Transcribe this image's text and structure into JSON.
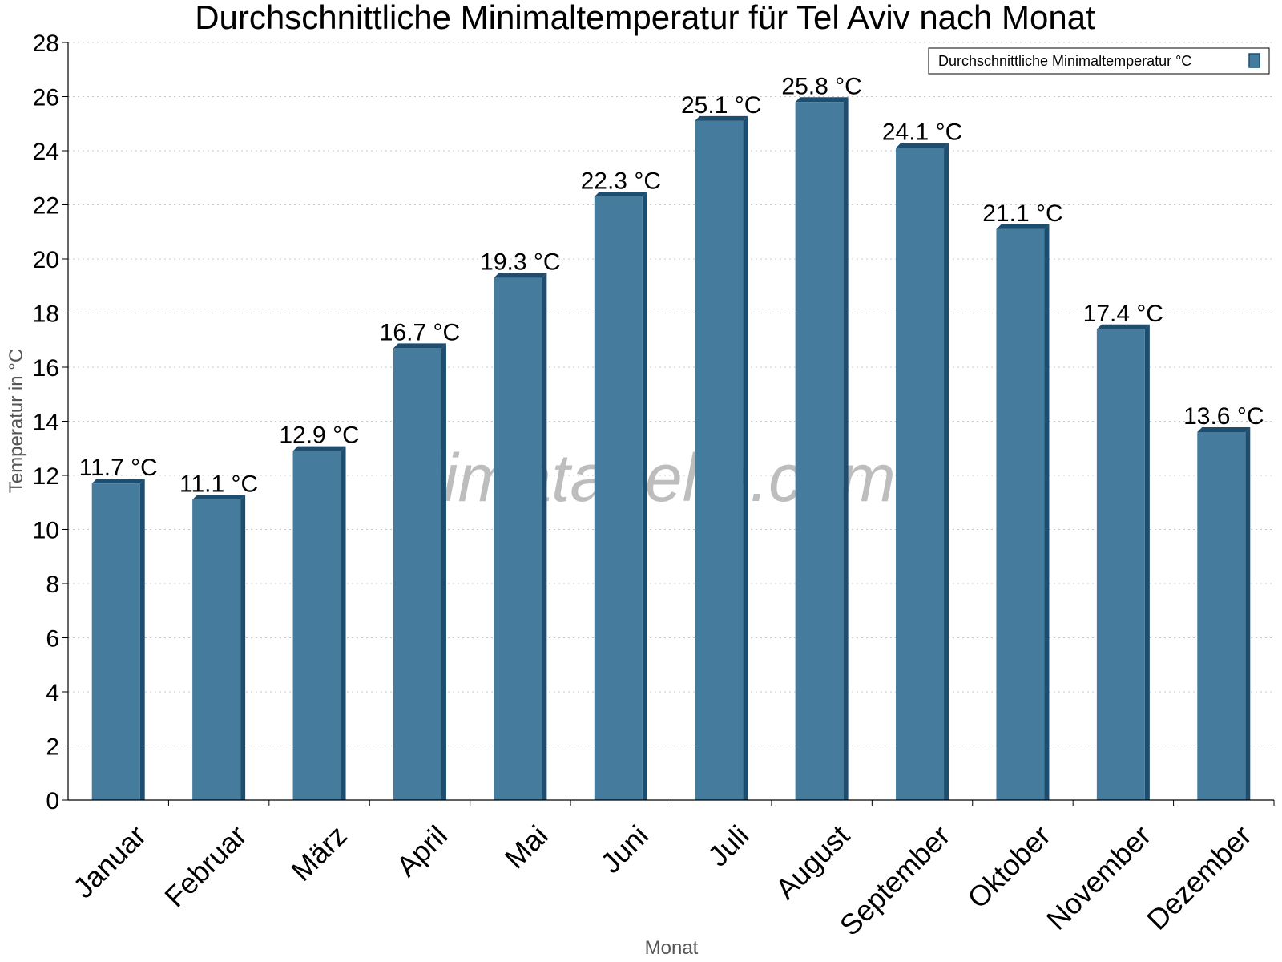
{
  "chart_data": {
    "type": "bar",
    "title": "Durchschnittliche Minimaltemperatur für Tel Aviv nach Monat",
    "xlabel": "Monat",
    "ylabel": "Temperatur in °C",
    "ylim": [
      0,
      28
    ],
    "yticks": [
      "0",
      "2",
      "4",
      "6",
      "8",
      "10",
      "12",
      "14",
      "16",
      "18",
      "20",
      "22",
      "24",
      "26",
      "28"
    ],
    "grid": true,
    "legend_position": "top-right",
    "categories": [
      "Januar",
      "Februar",
      "März",
      "April",
      "Mai",
      "Juni",
      "Juli",
      "August",
      "September",
      "Oktober",
      "November",
      "Dezember"
    ],
    "series": [
      {
        "name": "Durchschnittliche Minimaltemperatur °C",
        "values": [
          11.7,
          11.1,
          12.9,
          16.7,
          19.3,
          22.3,
          25.1,
          25.8,
          24.1,
          21.1,
          17.4,
          13.6
        ],
        "labels": [
          "11.7 °C",
          "11.1 °C",
          "12.9 °C",
          "16.7 °C",
          "19.3 °C",
          "22.3 °C",
          "25.1 °C",
          "25.8 °C",
          "24.1 °C",
          "21.1 °C",
          "17.4 °C",
          "13.6 °C"
        ],
        "color": "#457b9d",
        "edge_color": "#1d4e70"
      }
    ]
  },
  "watermark": "klimatabelle.com"
}
